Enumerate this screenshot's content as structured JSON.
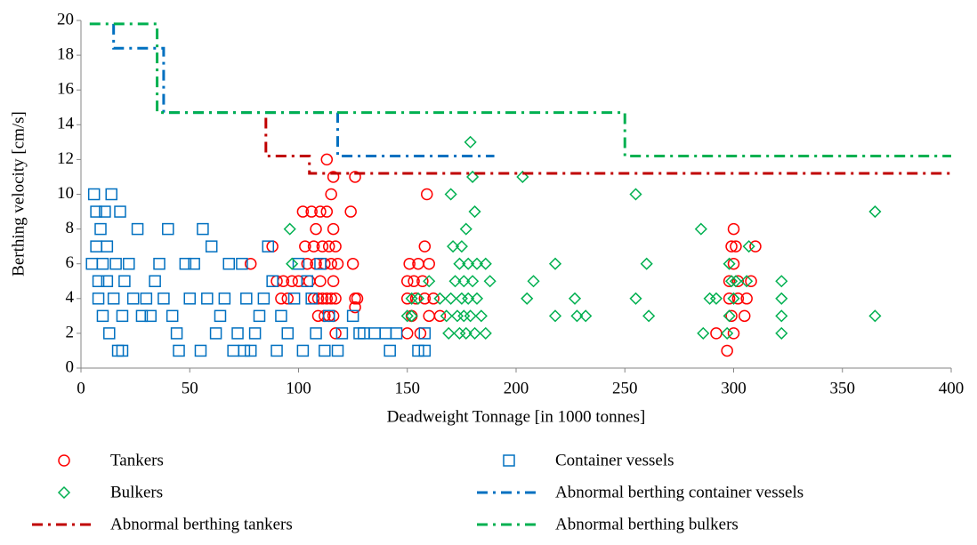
{
  "chart_data": {
    "type": "scatter",
    "xlabel": "Deadweight Tonnage [in 1000 tonnes]",
    "ylabel": "Berthing velocity [cm/s]",
    "xlim": [
      0,
      400
    ],
    "xticks": [
      0,
      50,
      100,
      150,
      200,
      250,
      300,
      350,
      400
    ],
    "ylim": [
      0,
      20
    ],
    "yticks": [
      0,
      2,
      4,
      6,
      8,
      10,
      12,
      14,
      16,
      18,
      20
    ],
    "grid": false,
    "legend": "bottom",
    "series": [
      {
        "name": "Tankers",
        "color": "#ff0000",
        "mode": "markers",
        "marker": "circle",
        "x": [
          78,
          88,
          90,
          92,
          93,
          95,
          97,
          100,
          102,
          103,
          104,
          105,
          106,
          107,
          107,
          108,
          108,
          109,
          109,
          110,
          110,
          111,
          111,
          112,
          112,
          113,
          113,
          113,
          114,
          114,
          115,
          115,
          115,
          116,
          116,
          116,
          116,
          117,
          117,
          117,
          118,
          124,
          125,
          126,
          126,
          126,
          127,
          150,
          150,
          150,
          151,
          152,
          153,
          154,
          155,
          156,
          157,
          158,
          158,
          159,
          160,
          160,
          162,
          165,
          292,
          297,
          298,
          298,
          299,
          299,
          300,
          300,
          300,
          301,
          302,
          302,
          305,
          306,
          308,
          310
        ],
        "values": [
          6,
          7,
          5,
          4,
          5,
          4,
          5,
          5,
          9,
          7,
          6,
          5,
          9,
          4,
          7,
          8,
          6,
          4,
          3,
          9,
          5,
          7,
          4,
          6,
          3,
          12,
          9,
          4,
          7,
          3,
          10,
          6,
          4,
          11,
          8,
          5,
          3,
          7,
          4,
          2,
          6,
          9,
          6,
          11,
          4,
          3.5,
          4,
          2,
          4,
          5,
          6,
          3,
          5,
          4,
          6,
          2,
          5,
          7,
          4,
          10,
          3,
          6,
          4,
          3,
          2,
          1,
          5,
          4,
          7,
          3,
          8,
          2,
          6,
          7,
          4,
          5,
          3,
          4,
          5,
          7
        ]
      },
      {
        "name": "Container vessels",
        "color": "#0070c0",
        "mode": "markers",
        "marker": "square",
        "x": [
          5,
          6,
          7,
          7,
          8,
          8,
          9,
          10,
          10,
          11,
          12,
          12,
          13,
          14,
          15,
          16,
          17,
          18,
          19,
          19,
          20,
          22,
          24,
          26,
          28,
          30,
          32,
          34,
          36,
          38,
          40,
          42,
          44,
          45,
          48,
          50,
          52,
          55,
          56,
          58,
          60,
          62,
          64,
          66,
          68,
          70,
          72,
          74,
          75,
          76,
          78,
          80,
          82,
          84,
          86,
          88,
          90,
          92,
          95,
          98,
          100,
          102,
          104,
          106,
          108,
          110,
          112,
          114,
          118,
          120,
          125,
          128,
          130,
          135,
          140,
          142,
          145,
          155,
          158,
          158
        ],
        "values": [
          6,
          10,
          9,
          7,
          5,
          4,
          8,
          6,
          3,
          9,
          7,
          5,
          2,
          10,
          4,
          6,
          1,
          9,
          1,
          3,
          5,
          6,
          4,
          8,
          3,
          4,
          3,
          5,
          6,
          4,
          8,
          3,
          2,
          1,
          6,
          4,
          6,
          1,
          8,
          4,
          7,
          2,
          3,
          4,
          6,
          1,
          2,
          6,
          1,
          4,
          1,
          2,
          3,
          4,
          7,
          5,
          1,
          3,
          2,
          4,
          6,
          1,
          5,
          4,
          2,
          6,
          1,
          3,
          1,
          2,
          3,
          2,
          2,
          2,
          2,
          1,
          2,
          1,
          1,
          2
        ]
      },
      {
        "name": "Bulkers",
        "color": "#00b050",
        "mode": "markers",
        "marker": "diamond",
        "x": [
          96,
          97,
          150,
          152,
          152,
          155,
          160,
          165,
          168,
          169,
          170,
          170,
          171,
          172,
          173,
          174,
          174,
          175,
          175,
          176,
          176,
          177,
          177,
          178,
          178,
          179,
          179,
          180,
          180,
          181,
          181,
          182,
          182,
          184,
          186,
          186,
          188,
          203,
          205,
          208,
          218,
          218,
          227,
          228,
          232,
          255,
          255,
          260,
          261,
          285,
          286,
          289,
          292,
          297,
          298,
          298,
          299,
          300,
          301,
          306,
          307,
          322,
          322,
          322,
          322,
          365,
          365
        ],
        "values": [
          8,
          6,
          3,
          3,
          4,
          4,
          5,
          4,
          3,
          2,
          10,
          4,
          7,
          5,
          3,
          6,
          2,
          7,
          4,
          5,
          3,
          2,
          8,
          6,
          4,
          13,
          3,
          11,
          5,
          9,
          2,
          6,
          4,
          3,
          6,
          2,
          5,
          11,
          4,
          5,
          6,
          3,
          4,
          3,
          3,
          10,
          4,
          6,
          3,
          8,
          2,
          4,
          4,
          2,
          3,
          6,
          5,
          4,
          5,
          5,
          7,
          5,
          4,
          3,
          2,
          9,
          3
        ]
      },
      {
        "name": "Abnormal berthing container vessels",
        "color": "#0070c0",
        "mode": "lines",
        "x": [
          15,
          15,
          38,
          38,
          118,
          118,
          190
        ],
        "values": [
          19.8,
          18.4,
          18.4,
          14.7,
          14.7,
          12.2,
          12.2
        ]
      },
      {
        "name": "Abnormal berthing tankers",
        "color": "#c00000",
        "mode": "lines",
        "x": [
          85,
          85,
          105,
          105,
          400
        ],
        "values": [
          14.4,
          12.2,
          12.2,
          11.2,
          11.2
        ]
      },
      {
        "name": "Abnormal berthing bulkers",
        "color": "#00b050",
        "mode": "lines",
        "x": [
          4,
          35,
          35,
          250,
          250,
          400
        ],
        "values": [
          19.8,
          19.8,
          14.7,
          14.7,
          12.2,
          12.2
        ]
      }
    ]
  }
}
